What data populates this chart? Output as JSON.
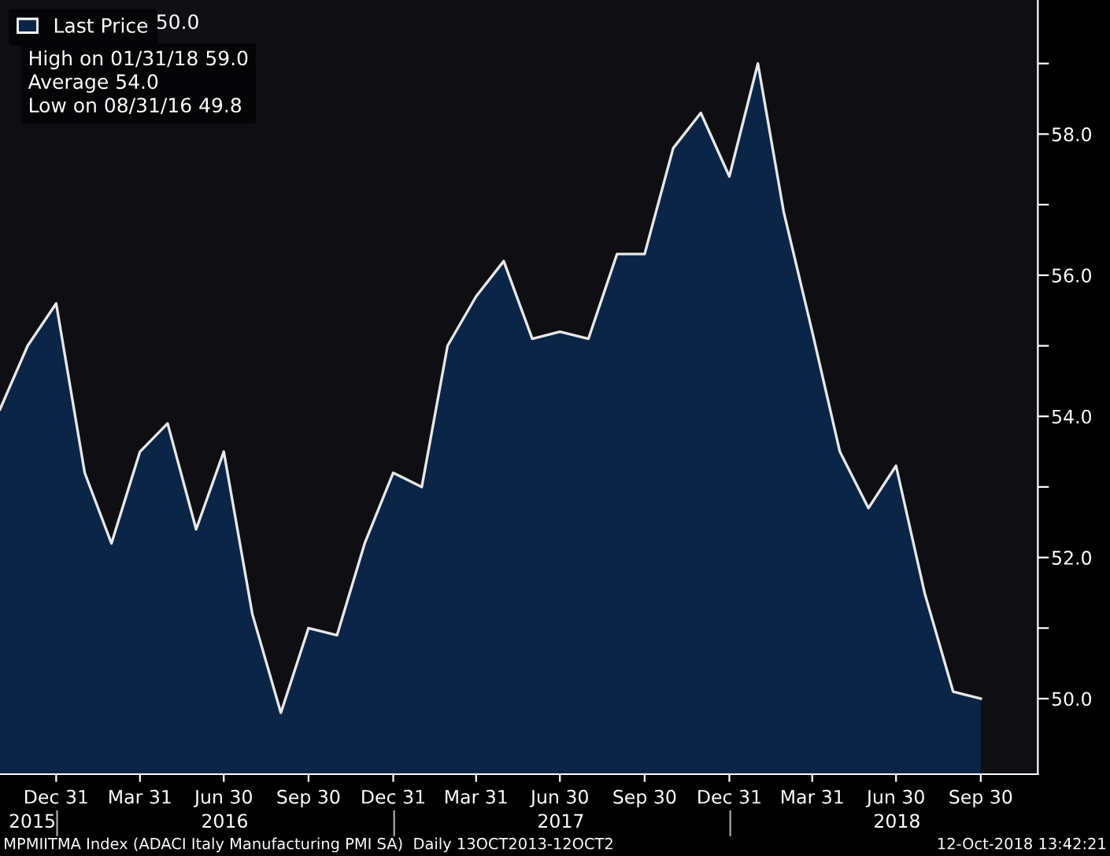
{
  "chart_data": {
    "type": "area",
    "x": [
      "2015-10-31",
      "2015-11-30",
      "2015-12-31",
      "2016-01-31",
      "2016-02-29",
      "2016-03-31",
      "2016-04-30",
      "2016-05-31",
      "2016-06-30",
      "2016-07-31",
      "2016-08-31",
      "2016-09-30",
      "2016-10-31",
      "2016-11-30",
      "2016-12-31",
      "2017-01-31",
      "2017-02-28",
      "2017-03-31",
      "2017-04-30",
      "2017-05-31",
      "2017-06-30",
      "2017-07-31",
      "2017-08-31",
      "2017-09-30",
      "2017-10-31",
      "2017-11-30",
      "2017-12-31",
      "2018-01-31",
      "2018-02-28",
      "2018-03-31",
      "2018-04-30",
      "2018-05-31",
      "2018-06-30",
      "2018-07-31",
      "2018-08-31",
      "2018-09-30"
    ],
    "series": [
      {
        "name": "Last Price",
        "color": "#0b2547",
        "values": [
          54.1,
          55.0,
          55.6,
          53.2,
          52.2,
          53.5,
          53.9,
          52.4,
          53.5,
          51.2,
          49.8,
          51.0,
          50.9,
          52.2,
          53.2,
          53.0,
          55.0,
          55.7,
          56.2,
          55.1,
          55.2,
          55.1,
          56.3,
          56.3,
          57.8,
          58.3,
          57.4,
          59.0,
          56.9,
          55.2,
          53.5,
          52.7,
          53.3,
          51.5,
          50.1,
          50.0
        ]
      }
    ],
    "ylim": [
      48.93,
      59.9
    ],
    "yticks": [
      {
        "value": 50,
        "label": "50.0"
      },
      {
        "value": 51,
        "label": null
      },
      {
        "value": 52,
        "label": "52.0"
      },
      {
        "value": 53,
        "label": null
      },
      {
        "value": 54,
        "label": "54.0"
      },
      {
        "value": 55,
        "label": null
      },
      {
        "value": 56,
        "label": "56.0"
      },
      {
        "value": 57,
        "label": null
      },
      {
        "value": 58,
        "label": "58.0"
      },
      {
        "value": 59,
        "label": null
      }
    ],
    "xlim": [
      "2015-10-31",
      "2018-12-01"
    ],
    "xticks": [
      {
        "value": "2015-12-31",
        "label": "Dec 31"
      },
      {
        "value": "2016-03-31",
        "label": "Mar 31"
      },
      {
        "value": "2016-06-30",
        "label": "Jun 30"
      },
      {
        "value": "2016-09-30",
        "label": "Sep 30"
      },
      {
        "value": "2016-12-31",
        "label": "Dec 31"
      },
      {
        "value": "2017-03-31",
        "label": "Mar 31"
      },
      {
        "value": "2017-06-30",
        "label": "Jun 30"
      },
      {
        "value": "2017-09-30",
        "label": "Sep 30"
      },
      {
        "value": "2017-12-31",
        "label": "Dec 31"
      },
      {
        "value": "2018-03-31",
        "label": "Mar 31"
      },
      {
        "value": "2018-06-30",
        "label": "Jun 30"
      },
      {
        "value": "2018-09-30",
        "label": "Sep 30"
      }
    ],
    "x2lim": [
      "2015-10-31",
      "2018-12-01"
    ],
    "x2ticks": [
      {
        "value": "2015-12-05",
        "label": "2015"
      },
      {
        "value": "2016-01-01",
        "label": null
      },
      {
        "value": "2016-07-01",
        "label": "2016"
      },
      {
        "value": "2017-01-01",
        "label": null
      },
      {
        "value": "2017-07-01",
        "label": "2017"
      },
      {
        "value": "2018-01-01",
        "label": null
      },
      {
        "value": "2018-07-01",
        "label": "2018"
      }
    ],
    "legend": "top left",
    "grid": false,
    "annotations": [
      "50.0",
      "High on 01/31/18 59.0",
      "Average 54.0",
      "Low on 08/31/16 49.8",
      "MPMIITMA Index (ADACI Italy Manufacturing PMI SA)  Daily 13OCT2013-12OCT2",
      "12-Oct-2018 13:42:21"
    ]
  }
}
